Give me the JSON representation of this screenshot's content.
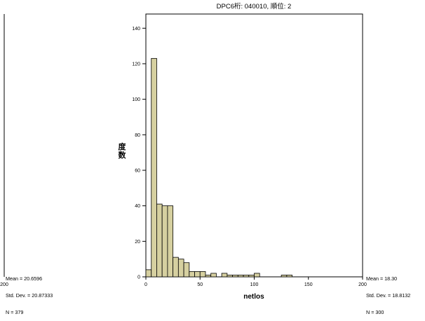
{
  "left_fragment": {
    "stats": {
      "mean": "Mean = 20.6596",
      "std": "Std. Dev. = 20.87333",
      "n": "N = 379"
    },
    "tick_label": "200"
  },
  "chart_data": {
    "type": "bar",
    "title": "DPC6桁: 040010, 順位: 2",
    "xlabel": "netlos",
    "ylabel": "度数",
    "xlim": [
      0,
      200
    ],
    "ylim": [
      0,
      148
    ],
    "xticks": [
      0,
      50,
      100,
      150,
      200
    ],
    "yticks": [
      0,
      20,
      40,
      60,
      80,
      100,
      120,
      140
    ],
    "bin_width": 5,
    "bins": [
      {
        "x0": 0,
        "x1": 5,
        "count": 4
      },
      {
        "x0": 5,
        "x1": 10,
        "count": 123
      },
      {
        "x0": 10,
        "x1": 15,
        "count": 41
      },
      {
        "x0": 15,
        "x1": 20,
        "count": 40
      },
      {
        "x0": 20,
        "x1": 25,
        "count": 40
      },
      {
        "x0": 25,
        "x1": 30,
        "count": 11
      },
      {
        "x0": 30,
        "x1": 35,
        "count": 10
      },
      {
        "x0": 35,
        "x1": 40,
        "count": 8
      },
      {
        "x0": 40,
        "x1": 45,
        "count": 3
      },
      {
        "x0": 45,
        "x1": 50,
        "count": 3
      },
      {
        "x0": 50,
        "x1": 55,
        "count": 3
      },
      {
        "x0": 55,
        "x1": 60,
        "count": 1
      },
      {
        "x0": 60,
        "x1": 65,
        "count": 2
      },
      {
        "x0": 65,
        "x1": 70,
        "count": 0
      },
      {
        "x0": 70,
        "x1": 75,
        "count": 2
      },
      {
        "x0": 75,
        "x1": 80,
        "count": 1
      },
      {
        "x0": 80,
        "x1": 85,
        "count": 1
      },
      {
        "x0": 85,
        "x1": 90,
        "count": 1
      },
      {
        "x0": 90,
        "x1": 95,
        "count": 1
      },
      {
        "x0": 95,
        "x1": 100,
        "count": 1
      },
      {
        "x0": 100,
        "x1": 105,
        "count": 2
      },
      {
        "x0": 105,
        "x1": 110,
        "count": 0
      },
      {
        "x0": 110,
        "x1": 115,
        "count": 0
      },
      {
        "x0": 115,
        "x1": 120,
        "count": 0
      },
      {
        "x0": 120,
        "x1": 125,
        "count": 0
      },
      {
        "x0": 125,
        "x1": 130,
        "count": 1
      },
      {
        "x0": 130,
        "x1": 135,
        "count": 1
      }
    ],
    "stats": {
      "mean": "Mean = 18.30",
      "std": "Std. Dev. = 18.8132",
      "n": "N = 300"
    },
    "grid": false,
    "colors": {
      "bar_fill": "#d6d0a0",
      "bar_stroke": "#000000",
      "axis": "#000000"
    }
  }
}
